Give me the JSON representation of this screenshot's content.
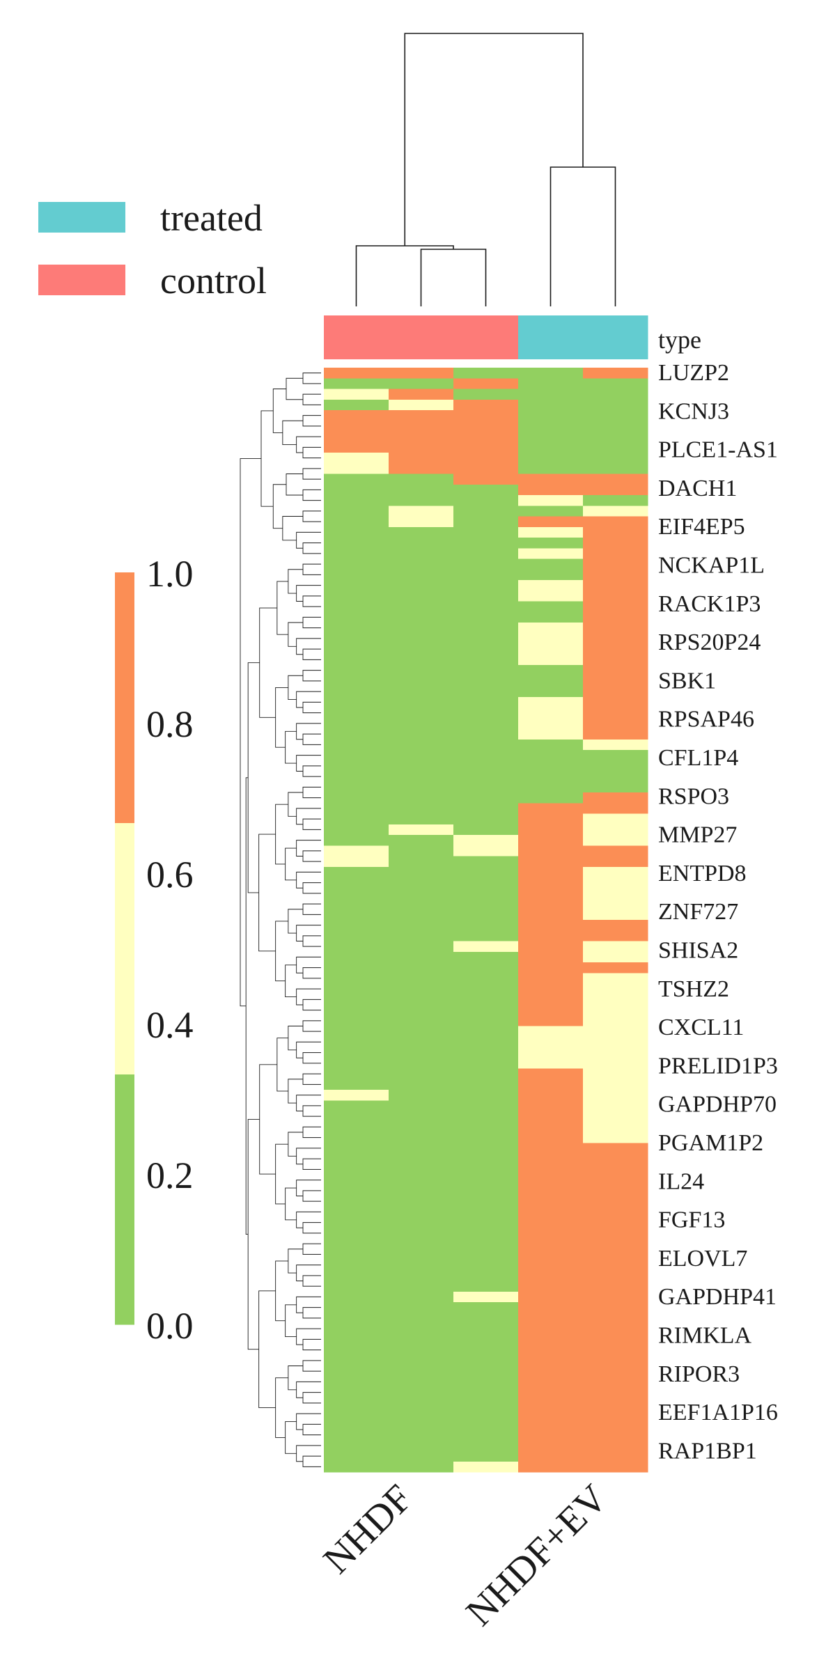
{
  "chart_data": {
    "type": "heatmap",
    "legend": {
      "entries": [
        {
          "label": "treated",
          "color": "#63ccd0"
        },
        {
          "label": "control",
          "color": "#fd7b78"
        }
      ]
    },
    "annotation_row": {
      "label": "type",
      "values": [
        "control",
        "control",
        "control",
        "treated",
        "treated"
      ]
    },
    "x_tick_labels": [
      "NHDF",
      "NHDF+EV"
    ],
    "row_labels": [
      "LUZP2",
      "KCNJ3",
      "PLCE1-AS1",
      "DACH1",
      "EIF4EP5",
      "NCKAP1L",
      "RACK1P3",
      "RPS20P24",
      "SBK1",
      "RPSAP46",
      "CFL1P4",
      "RSPO3",
      "MMP27",
      "ENTPD8",
      "ZNF727",
      "SHISA2",
      "TSHZ2",
      "CXCL11",
      "PRELID1P3",
      "GAPDHP70",
      "PGAM1P2",
      "IL24",
      "FGF13",
      "ELOVL7",
      "GAPDHP41",
      "RIMKLA",
      "RIPOR3",
      "EEF1A1P16",
      "RAP1BP1"
    ],
    "colorbar": {
      "ticks": [
        "0.0",
        "0.2",
        "0.4",
        "0.6",
        "0.8",
        "1.0"
      ],
      "range": [
        0,
        1
      ],
      "bands": [
        {
          "from": 0.0,
          "to": 0.333,
          "color": "#92d060"
        },
        {
          "from": 0.333,
          "to": 0.667,
          "color": "#ffffc0"
        },
        {
          "from": 0.667,
          "to": 1.0,
          "color": "#fb8e55"
        }
      ]
    },
    "colors": {
      "low": "#92d060",
      "mid": "#ffffc0",
      "high": "#fb8e55"
    },
    "columns": 5,
    "rows": 104,
    "matrix_runs": [
      [
        [
          0,
          1,
          2
        ],
        [
          1,
          1,
          0
        ],
        [
          2,
          1,
          1
        ],
        [
          3,
          1,
          0
        ],
        [
          4,
          4,
          2
        ],
        [
          8,
          2,
          1
        ],
        [
          10,
          2,
          0
        ],
        [
          12,
          33,
          0
        ],
        [
          45,
          2,
          1
        ],
        [
          47,
          4,
          0
        ],
        [
          51,
          17,
          0
        ],
        [
          68,
          1,
          1
        ],
        [
          69,
          34,
          0
        ],
        [
          103,
          1,
          0
        ]
      ],
      [
        [
          0,
          1,
          2
        ],
        [
          1,
          1,
          0
        ],
        [
          2,
          1,
          2
        ],
        [
          3,
          1,
          1
        ],
        [
          4,
          4,
          2
        ],
        [
          8,
          2,
          2
        ],
        [
          10,
          2,
          0
        ],
        [
          12,
          1,
          0
        ],
        [
          13,
          2,
          1
        ],
        [
          15,
          2,
          0
        ],
        [
          17,
          1,
          0
        ],
        [
          18,
          24,
          0
        ],
        [
          42,
          1,
          0
        ],
        [
          43,
          1,
          1
        ],
        [
          44,
          60,
          0
        ]
      ],
      [
        [
          0,
          1,
          0
        ],
        [
          1,
          1,
          2
        ],
        [
          2,
          1,
          0
        ],
        [
          3,
          1,
          2
        ],
        [
          4,
          4,
          2
        ],
        [
          8,
          2,
          2
        ],
        [
          10,
          1,
          2
        ],
        [
          11,
          1,
          0
        ],
        [
          12,
          32,
          0
        ],
        [
          44,
          2,
          1
        ],
        [
          46,
          8,
          0
        ],
        [
          54,
          1,
          1
        ],
        [
          55,
          32,
          0
        ],
        [
          87,
          1,
          1
        ],
        [
          88,
          15,
          0
        ],
        [
          103,
          1,
          1
        ]
      ],
      [
        [
          0,
          1,
          0
        ],
        [
          1,
          1,
          0
        ],
        [
          2,
          1,
          0
        ],
        [
          3,
          1,
          0
        ],
        [
          4,
          4,
          0
        ],
        [
          8,
          2,
          0
        ],
        [
          10,
          1,
          2
        ],
        [
          11,
          1,
          2
        ],
        [
          12,
          1,
          1
        ],
        [
          13,
          1,
          0
        ],
        [
          14,
          1,
          2
        ],
        [
          15,
          1,
          1
        ],
        [
          16,
          1,
          0
        ],
        [
          17,
          1,
          1
        ],
        [
          18,
          2,
          0
        ],
        [
          20,
          2,
          1
        ],
        [
          22,
          2,
          0
        ],
        [
          24,
          4,
          1
        ],
        [
          28,
          3,
          0
        ],
        [
          31,
          4,
          1
        ],
        [
          35,
          6,
          0
        ],
        [
          41,
          21,
          2
        ],
        [
          62,
          4,
          1
        ],
        [
          66,
          38,
          2
        ]
      ],
      [
        [
          0,
          1,
          2
        ],
        [
          1,
          1,
          0
        ],
        [
          2,
          1,
          0
        ],
        [
          3,
          1,
          0
        ],
        [
          4,
          4,
          0
        ],
        [
          8,
          2,
          0
        ],
        [
          10,
          1,
          2
        ],
        [
          11,
          1,
          2
        ],
        [
          12,
          1,
          0
        ],
        [
          13,
          1,
          1
        ],
        [
          14,
          20,
          2
        ],
        [
          34,
          1,
          2
        ],
        [
          35,
          1,
          1
        ],
        [
          36,
          4,
          0
        ],
        [
          40,
          2,
          2
        ],
        [
          42,
          3,
          1
        ],
        [
          45,
          2,
          2
        ],
        [
          47,
          2,
          1
        ],
        [
          49,
          3,
          1
        ],
        [
          52,
          2,
          2
        ],
        [
          54,
          2,
          1
        ],
        [
          56,
          1,
          2
        ],
        [
          57,
          1,
          1
        ],
        [
          58,
          15,
          1
        ],
        [
          73,
          31,
          2
        ]
      ]
    ]
  }
}
